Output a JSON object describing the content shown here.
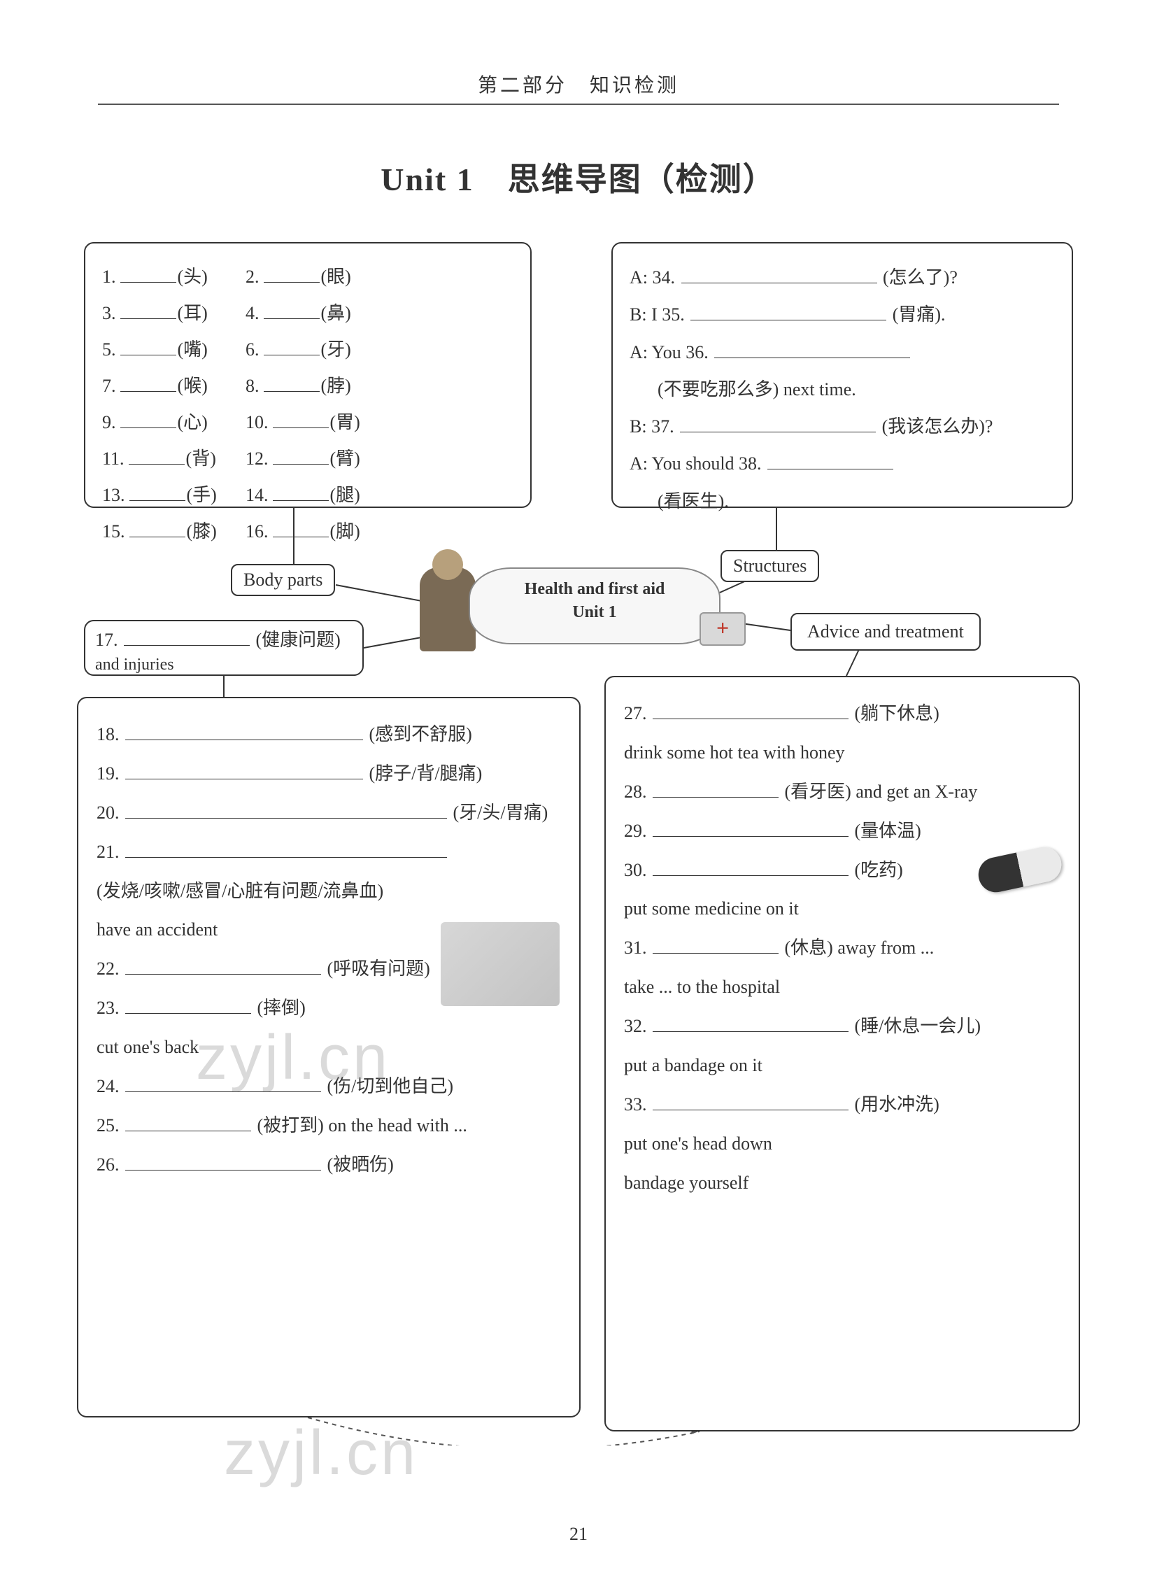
{
  "header": "第二部分　知识检测",
  "title": "Unit 1　思维导图（检测）",
  "labels": {
    "body_parts": "Body parts",
    "structures": "Structures",
    "advice": "Advice and treatment"
  },
  "hub": {
    "line1": "Health and first aid",
    "line2": "Unit 1"
  },
  "body_parts": {
    "items": [
      {
        "n": "1.",
        "hint": "(头)"
      },
      {
        "n": "2.",
        "hint": "(眼)"
      },
      {
        "n": "3.",
        "hint": "(耳)"
      },
      {
        "n": "4.",
        "hint": "(鼻)"
      },
      {
        "n": "5.",
        "hint": "(嘴)"
      },
      {
        "n": "6.",
        "hint": "(牙)"
      },
      {
        "n": "7.",
        "hint": "(喉)"
      },
      {
        "n": "8.",
        "hint": "(脖)"
      },
      {
        "n": "9.",
        "hint": "(心)"
      },
      {
        "n": "10.",
        "hint": "(胃)"
      },
      {
        "n": "11.",
        "hint": "(背)"
      },
      {
        "n": "12.",
        "hint": "(臂)"
      },
      {
        "n": "13.",
        "hint": "(手)"
      },
      {
        "n": "14.",
        "hint": "(腿)"
      },
      {
        "n": "15.",
        "hint": "(膝)"
      },
      {
        "n": "16.",
        "hint": "(脚)"
      }
    ]
  },
  "structures": {
    "l1a": "A: 34.",
    "l1b": "(怎么了)?",
    "l2a": "B: I 35.",
    "l2b": "(胃痛).",
    "l3a": "A: You 36.",
    "l3b": "(不要吃那么多) next time.",
    "l4a": "B: 37.",
    "l4b": "(我该怎么办)?",
    "l5a": "A: You should 38.",
    "l5b": "(看医生)."
  },
  "hp": {
    "num": "17.",
    "hint": "(健康问题)",
    "sub": "and injuries"
  },
  "left": {
    "i18": {
      "n": "18.",
      "h": "(感到不舒服)"
    },
    "i19": {
      "n": "19.",
      "h": "(脖子/背/腿痛)"
    },
    "i20": {
      "n": "20.",
      "h": "(牙/头/胃痛)"
    },
    "i21": {
      "n": "21.",
      "h": "(发烧/咳嗽/感冒/心脏有问题/流鼻血)"
    },
    "t1": "have an accident",
    "i22": {
      "n": "22.",
      "h": "(呼吸有问题)"
    },
    "i23": {
      "n": "23.",
      "h": "(摔倒)"
    },
    "t2": "cut one's back",
    "i24": {
      "n": "24.",
      "h": "(伤/切到他自己)"
    },
    "i25": {
      "n": "25.",
      "h": "(被打到) on the head with ..."
    },
    "i26": {
      "n": "26.",
      "h": "(被晒伤)"
    }
  },
  "right": {
    "i27": {
      "n": "27.",
      "h": "(躺下休息)"
    },
    "t1": "drink some hot tea with honey",
    "i28": {
      "n": "28.",
      "h": "(看牙医) and get an X-ray"
    },
    "i29": {
      "n": "29.",
      "h": "(量体温)"
    },
    "i30": {
      "n": "30.",
      "h": "(吃药)"
    },
    "t2": "put some medicine on it",
    "i31": {
      "n": "31.",
      "h": "(休息) away from ..."
    },
    "t3": "take ... to the hospital",
    "i32": {
      "n": "32.",
      "h": "(睡/休息一会儿)"
    },
    "t4": "put a bandage on it",
    "i33": {
      "n": "33.",
      "h": "(用水冲洗)"
    },
    "t5": "put one's head down",
    "t6": "bandage yourself"
  },
  "watermark": "zyjl.cn",
  "page": "21"
}
